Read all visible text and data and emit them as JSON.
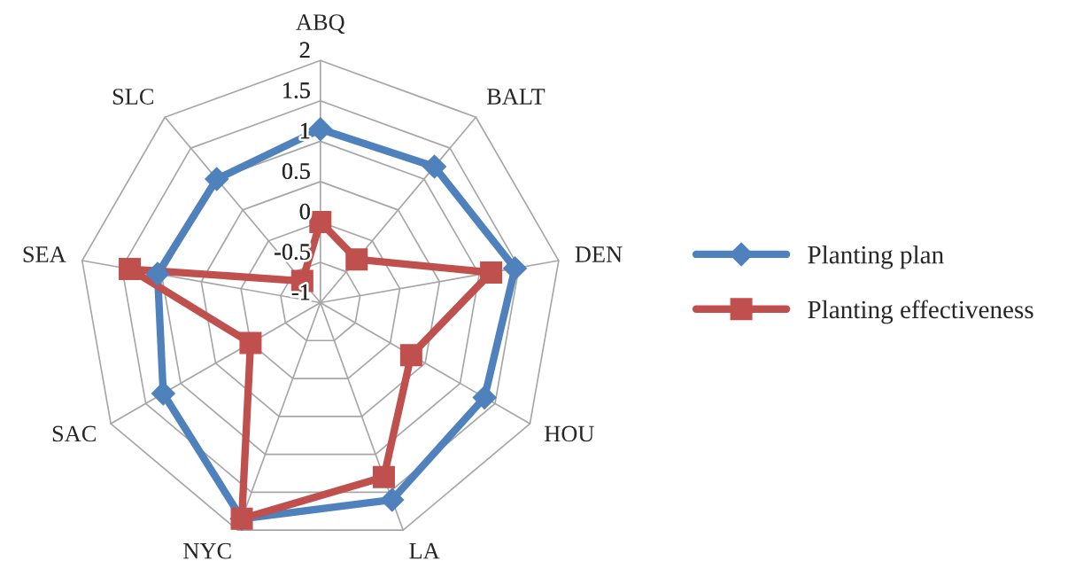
{
  "chart_data": {
    "type": "radar",
    "categories": [
      "ABQ",
      "BALT",
      "DEN",
      "HOU",
      "LA",
      "NYC",
      "SAC",
      "SEA",
      "SLC"
    ],
    "series": [
      {
        "name": "Planting plan",
        "color": "#4f81bd",
        "marker": "diamond",
        "values": [
          1.15,
          1.2,
          1.45,
          1.35,
          1.6,
          1.85,
          1.25,
          1.05,
          1.0
        ]
      },
      {
        "name": "Planting effectiveness",
        "color": "#c0504d",
        "marker": "square",
        "values": [
          0,
          -0.3,
          1.15,
          0.3,
          1.3,
          1.85,
          0,
          1.4,
          -0.65
        ]
      }
    ],
    "ylim": [
      -1,
      2
    ],
    "yticks": [
      -1,
      -0.5,
      0,
      0.5,
      1,
      1.5,
      2
    ],
    "grid": true,
    "legend": "right"
  }
}
